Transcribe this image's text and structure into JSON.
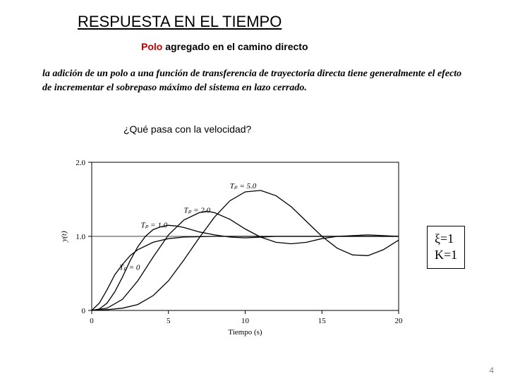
{
  "title": "RESPUESTA EN EL TIEMPO",
  "subtitle_prefix": "Polo",
  "subtitle_rest": " agregado en el camino directo",
  "description": "la adición de un polo a una función de transferencia de trayectoria directa tiene generalmente el efecto de incrementar el sobrepaso máximo del sistema en lazo cerrado.",
  "question": "¿Qué pasa con la velocidad?",
  "params": {
    "xi": "ξ=1",
    "K": "K=1"
  },
  "page_number": "4",
  "chart": {
    "type": "line",
    "background_color": "#ffffff",
    "axis_color": "#000000",
    "line_color": "#000000",
    "line_width": 1.3,
    "font_size_axis": 11,
    "font_size_label": 11,
    "xlabel": "Tiempo (s)",
    "ylabel": "y(t)",
    "xlim": [
      0,
      20
    ],
    "ylim": [
      0,
      2.0
    ],
    "xticks": [
      0,
      5,
      10,
      15,
      20
    ],
    "yticks": [
      0,
      1.0,
      2.0
    ],
    "ytick_labels": [
      "0",
      "1.0",
      "2.0"
    ],
    "ref_line_y": 1.0,
    "curve_labels": [
      {
        "text": "Tₚ = 0",
        "x": 1.8,
        "y": 0.55
      },
      {
        "text": "Tₚ = 1.0",
        "x": 3.2,
        "y": 1.12
      },
      {
        "text": "Tₚ = 2.0",
        "x": 6.0,
        "y": 1.32
      },
      {
        "text": "Tₚ = 5.0",
        "x": 9.0,
        "y": 1.65
      }
    ],
    "series": [
      {
        "name": "Tp0",
        "data": [
          [
            0,
            0
          ],
          [
            0.5,
            0.1
          ],
          [
            1,
            0.28
          ],
          [
            1.5,
            0.48
          ],
          [
            2,
            0.62
          ],
          [
            2.5,
            0.74
          ],
          [
            3,
            0.82
          ],
          [
            4,
            0.92
          ],
          [
            5,
            0.97
          ],
          [
            6,
            0.99
          ],
          [
            8,
            1.0
          ],
          [
            20,
            1.0
          ]
        ]
      },
      {
        "name": "Tp1",
        "data": [
          [
            0,
            0
          ],
          [
            0.5,
            0.02
          ],
          [
            1,
            0.1
          ],
          [
            1.5,
            0.25
          ],
          [
            2,
            0.45
          ],
          [
            2.5,
            0.67
          ],
          [
            3,
            0.86
          ],
          [
            3.5,
            1.0
          ],
          [
            4,
            1.09
          ],
          [
            4.5,
            1.13
          ],
          [
            5,
            1.15
          ],
          [
            5.5,
            1.14
          ],
          [
            6,
            1.12
          ],
          [
            7,
            1.06
          ],
          [
            8,
            1.02
          ],
          [
            9,
            0.99
          ],
          [
            10,
            0.98
          ],
          [
            12,
            1.0
          ],
          [
            20,
            1.0
          ]
        ]
      },
      {
        "name": "Tp2",
        "data": [
          [
            0,
            0
          ],
          [
            1,
            0.03
          ],
          [
            2,
            0.15
          ],
          [
            3,
            0.4
          ],
          [
            4,
            0.72
          ],
          [
            5,
            1.02
          ],
          [
            6,
            1.22
          ],
          [
            7,
            1.32
          ],
          [
            7.5,
            1.34
          ],
          [
            8,
            1.32
          ],
          [
            9,
            1.23
          ],
          [
            10,
            1.1
          ],
          [
            11,
            0.99
          ],
          [
            12,
            0.92
          ],
          [
            13,
            0.9
          ],
          [
            14,
            0.92
          ],
          [
            15,
            0.97
          ],
          [
            16,
            1.0
          ],
          [
            18,
            1.02
          ],
          [
            20,
            1.0
          ]
        ]
      },
      {
        "name": "Tp5",
        "data": [
          [
            0,
            0
          ],
          [
            1,
            0.01
          ],
          [
            2,
            0.03
          ],
          [
            3,
            0.08
          ],
          [
            4,
            0.2
          ],
          [
            5,
            0.4
          ],
          [
            6,
            0.68
          ],
          [
            7,
            0.98
          ],
          [
            8,
            1.26
          ],
          [
            9,
            1.48
          ],
          [
            10,
            1.6
          ],
          [
            11,
            1.62
          ],
          [
            12,
            1.55
          ],
          [
            13,
            1.4
          ],
          [
            14,
            1.2
          ],
          [
            15,
            1.0
          ],
          [
            16,
            0.84
          ],
          [
            17,
            0.75
          ],
          [
            18,
            0.74
          ],
          [
            19,
            0.82
          ],
          [
            20,
            0.95
          ]
        ]
      }
    ]
  }
}
